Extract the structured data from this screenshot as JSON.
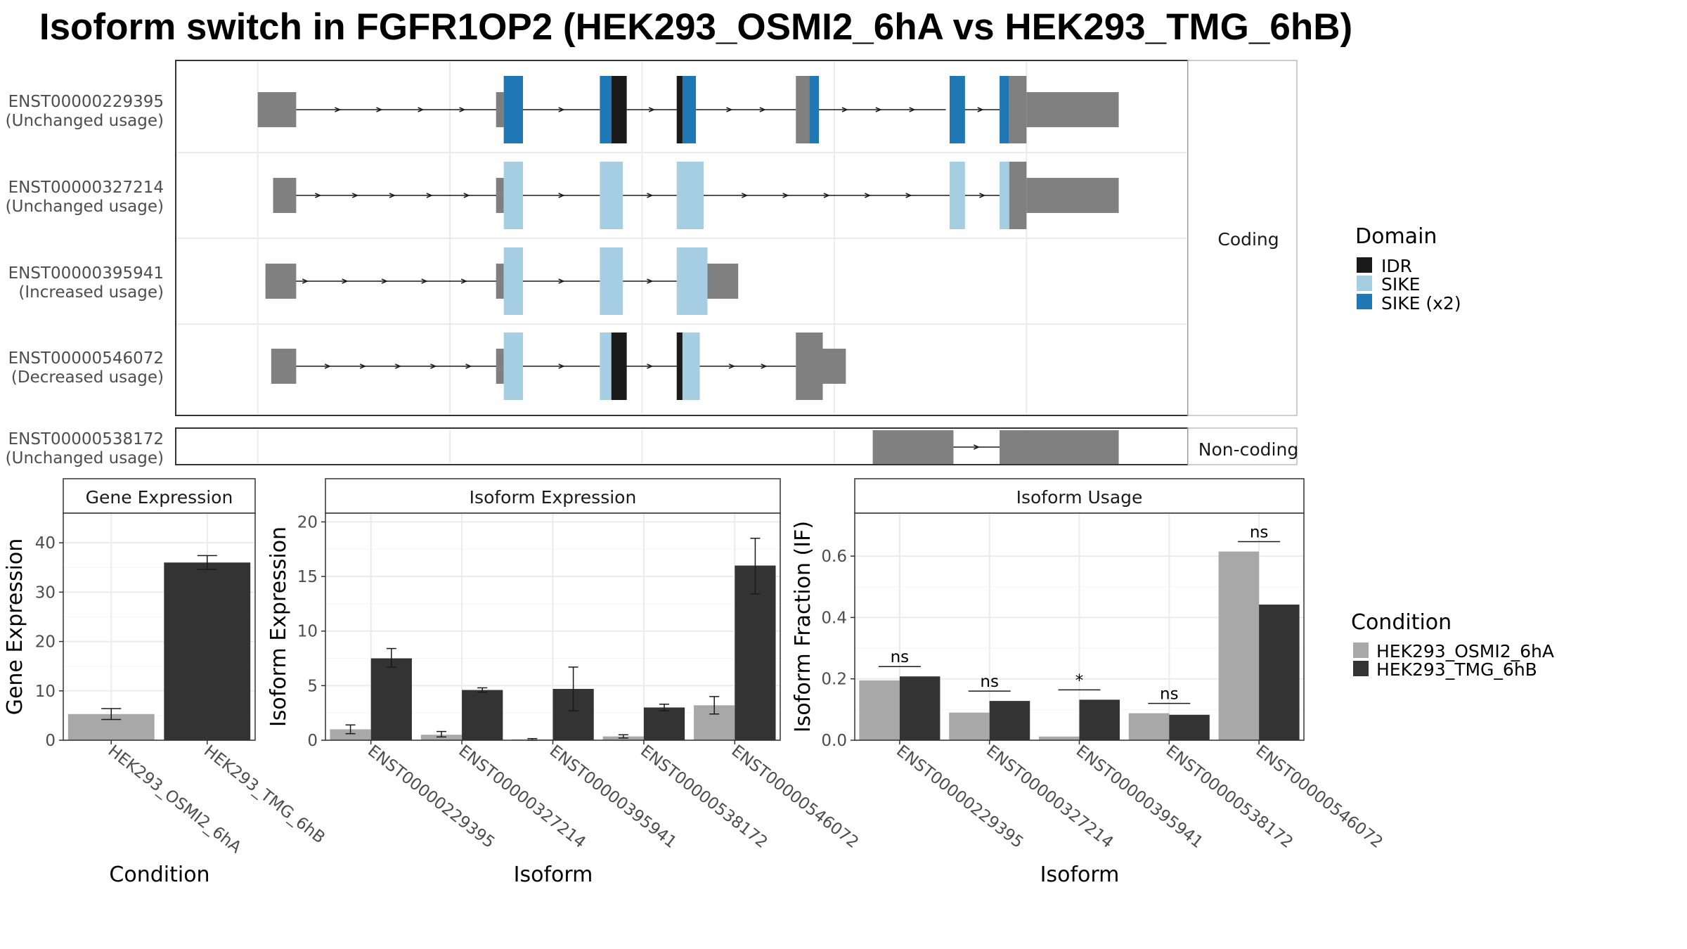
{
  "title": "Isoform switch in FGFR1OP2 (HEK293_OSMI2_6hA vs HEK293_TMG_6hB)",
  "colors": {
    "IDR": "#1a1a1a",
    "SIKE": "#a6cee3",
    "SIKE_x2": "#1f78b4",
    "utr": "#808080",
    "cond1": "#a8a8a8",
    "cond2": "#333333"
  },
  "structure": {
    "coding_strip": "Coding",
    "noncoding_strip": "Non-coding",
    "transcripts": [
      {
        "id": "ENST00000229395",
        "usage": "(Unchanged usage)",
        "section": "coding",
        "introns": [
          [
            1.0,
            6.4
          ],
          [
            6.9,
            8.9
          ],
          [
            9.6,
            10.9
          ],
          [
            11.4,
            14.0
          ],
          [
            14.4,
            17.9
          ],
          [
            18.3,
            19.3
          ]
        ],
        "exons": [
          {
            "range": [
              0.0,
              1.0
            ],
            "kind": "utr"
          },
          {
            "range": [
              6.2,
              6.4
            ],
            "kind": "utr",
            "thin": true
          },
          {
            "range": [
              6.4,
              6.9
            ],
            "kind": "SIKE_x2"
          },
          {
            "range": [
              8.9,
              9.2
            ],
            "kind": "SIKE_x2"
          },
          {
            "range": [
              9.2,
              9.6
            ],
            "kind": "IDR"
          },
          {
            "range": [
              10.9,
              11.05
            ],
            "kind": "IDR"
          },
          {
            "range": [
              11.05,
              11.4
            ],
            "kind": "SIKE_x2"
          },
          {
            "range": [
              14.0,
              14.35
            ],
            "kind": "utr"
          },
          {
            "range": [
              14.35,
              14.6
            ],
            "kind": "SIKE_x2"
          },
          {
            "range": [
              18.0,
              18.4
            ],
            "kind": "SIKE_x2"
          },
          {
            "range": [
              19.3,
              19.55
            ],
            "kind": "SIKE_x2"
          },
          {
            "range": [
              19.55,
              22.4
            ],
            "kind": "utr"
          }
        ]
      },
      {
        "id": "ENST00000327214",
        "usage": "(Unchanged usage)",
        "section": "coding",
        "introns": [
          [
            0.6,
            6.4
          ],
          [
            6.9,
            8.9
          ],
          [
            9.5,
            10.9
          ],
          [
            11.6,
            18.0
          ],
          [
            18.4,
            19.3
          ]
        ],
        "exons": [
          {
            "range": [
              0.4,
              1.0
            ],
            "kind": "utr"
          },
          {
            "range": [
              6.2,
              6.4
            ],
            "kind": "utr",
            "thin": true
          },
          {
            "range": [
              6.4,
              6.9
            ],
            "kind": "SIKE"
          },
          {
            "range": [
              8.9,
              9.5
            ],
            "kind": "SIKE"
          },
          {
            "range": [
              10.9,
              11.6
            ],
            "kind": "SIKE"
          },
          {
            "range": [
              18.0,
              18.4
            ],
            "kind": "SIKE"
          },
          {
            "range": [
              19.3,
              19.55
            ],
            "kind": "SIKE"
          },
          {
            "range": [
              19.55,
              22.4
            ],
            "kind": "utr"
          }
        ]
      },
      {
        "id": "ENST00000395941",
        "usage": "(Increased usage)",
        "section": "coding",
        "introns": [
          [
            0.2,
            6.4
          ],
          [
            6.9,
            8.9
          ],
          [
            9.5,
            10.9
          ]
        ],
        "exons": [
          {
            "range": [
              0.2,
              1.0
            ],
            "kind": "utr"
          },
          {
            "range": [
              6.2,
              6.4
            ],
            "kind": "utr",
            "thin": true
          },
          {
            "range": [
              6.4,
              6.9
            ],
            "kind": "SIKE"
          },
          {
            "range": [
              8.9,
              9.5
            ],
            "kind": "SIKE"
          },
          {
            "range": [
              10.9,
              11.7
            ],
            "kind": "SIKE"
          },
          {
            "range": [
              11.7,
              12.5
            ],
            "kind": "utr",
            "thin": true
          }
        ]
      },
      {
        "id": "ENST00000546072",
        "usage": "(Decreased usage)",
        "section": "coding",
        "introns": [
          [
            0.9,
            6.4
          ],
          [
            6.9,
            8.9
          ],
          [
            9.5,
            10.9
          ],
          [
            11.5,
            14.0
          ]
        ],
        "exons": [
          {
            "range": [
              0.35,
              1.0
            ],
            "kind": "utr"
          },
          {
            "range": [
              6.2,
              6.4
            ],
            "kind": "utr",
            "thin": true
          },
          {
            "range": [
              6.4,
              6.9
            ],
            "kind": "SIKE"
          },
          {
            "range": [
              8.9,
              9.2
            ],
            "kind": "SIKE"
          },
          {
            "range": [
              9.2,
              9.6
            ],
            "kind": "IDR"
          },
          {
            "range": [
              10.9,
              11.05
            ],
            "kind": "IDR"
          },
          {
            "range": [
              11.05,
              11.5
            ],
            "kind": "SIKE"
          },
          {
            "range": [
              14.0,
              14.7
            ],
            "kind": "utr"
          },
          {
            "range": [
              14.7,
              15.3
            ],
            "kind": "utr",
            "thin": true
          }
        ]
      },
      {
        "id": "ENST00000538172",
        "usage": "(Unchanged usage)",
        "section": "noncoding",
        "introns": [
          [
            18.1,
            19.3
          ]
        ],
        "exons": [
          {
            "range": [
              16.0,
              18.1
            ],
            "kind": "utr"
          },
          {
            "range": [
              19.3,
              22.4
            ],
            "kind": "utr"
          }
        ]
      }
    ]
  },
  "domain_legend": {
    "title": "Domain",
    "items": [
      {
        "label": "IDR",
        "color": "#1a1a1a"
      },
      {
        "label": "SIKE",
        "color": "#a6cee3"
      },
      {
        "label": "SIKE (x2)",
        "color": "#1f78b4"
      }
    ]
  },
  "condition_legend": {
    "title": "Condition",
    "items": [
      {
        "label": "HEK293_OSMI2_6hA",
        "color": "#a8a8a8"
      },
      {
        "label": "HEK293_TMG_6hB",
        "color": "#333333"
      }
    ]
  },
  "chart_data": [
    {
      "type": "bar",
      "title": "Gene Expression",
      "xlabel": "Condition",
      "ylabel": "Gene Expression",
      "ylim": [
        0,
        46
      ],
      "yticks": [
        0,
        10,
        20,
        30,
        40
      ],
      "categories": [
        "HEK293_OSMI2_6hA",
        "HEK293_TMG_6hB"
      ],
      "values": [
        5.3,
        36.0
      ],
      "errors": [
        [
          4.2,
          6.4
        ],
        [
          34.6,
          37.4
        ]
      ],
      "grid": true
    },
    {
      "type": "bar",
      "title": "Isoform Expression",
      "xlabel": "Isoform",
      "ylabel": "Isoform Expression",
      "ylim": [
        0,
        20.8
      ],
      "yticks": [
        0,
        5,
        10,
        15,
        20
      ],
      "categories": [
        "ENST00000229395",
        "ENST00000327214",
        "ENST00000395941",
        "ENST00000538172",
        "ENST00000546072"
      ],
      "series": [
        {
          "name": "HEK293_OSMI2_6hA",
          "values": [
            1.0,
            0.5,
            0.08,
            0.35,
            3.2
          ],
          "errors": [
            [
              0.6,
              1.4
            ],
            [
              0.3,
              0.8
            ],
            [
              0.0,
              0.15
            ],
            [
              0.2,
              0.5
            ],
            [
              2.4,
              4.0
            ]
          ]
        },
        {
          "name": "HEK293_TMG_6hB",
          "values": [
            7.5,
            4.6,
            4.7,
            3.0,
            16.0
          ],
          "errors": [
            [
              6.7,
              8.4
            ],
            [
              4.4,
              4.8
            ],
            [
              2.7,
              6.7
            ],
            [
              2.7,
              3.3
            ],
            [
              13.4,
              18.5
            ]
          ]
        }
      ],
      "grid": true
    },
    {
      "type": "bar",
      "title": "Isoform Usage",
      "xlabel": "Isoform",
      "ylabel": "Isoform Fraction (IF)",
      "ylim": [
        0,
        0.74
      ],
      "yticks": [
        0.0,
        0.2,
        0.4,
        0.6
      ],
      "tick_labels": [
        "0.0",
        "0.2",
        "0.4",
        "0.6"
      ],
      "categories": [
        "ENST00000229395",
        "ENST00000327214",
        "ENST00000395941",
        "ENST00000538172",
        "ENST00000546072"
      ],
      "series": [
        {
          "name": "HEK293_OSMI2_6hA",
          "values": [
            0.195,
            0.09,
            0.012,
            0.088,
            0.615
          ]
        },
        {
          "name": "HEK293_TMG_6hB",
          "values": [
            0.208,
            0.128,
            0.132,
            0.083,
            0.442
          ]
        }
      ],
      "significance": [
        "ns",
        "ns",
        "*",
        "ns",
        "ns"
      ],
      "grid": true
    }
  ]
}
